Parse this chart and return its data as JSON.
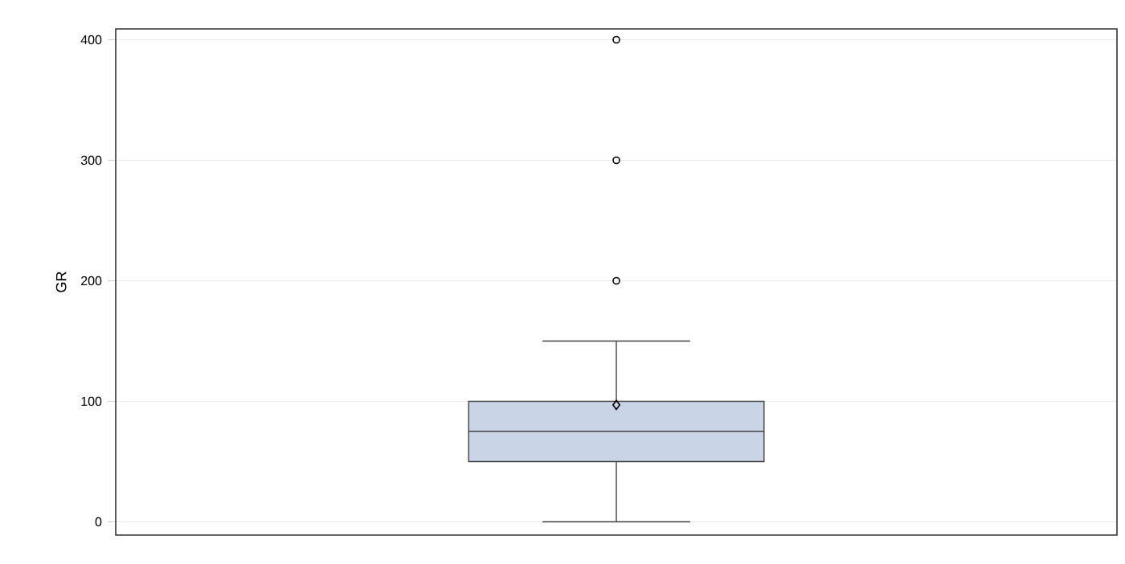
{
  "chart_data": {
    "type": "box",
    "ylabel": "GR",
    "categories": [
      null
    ],
    "boxes": [
      {
        "low": 0,
        "q1": 50,
        "median": 75,
        "q3": 100,
        "high": 150,
        "mean": 97,
        "outliers": [
          200,
          300,
          400
        ]
      }
    ],
    "color": "#c9d4e6",
    "ylim": [
      -11,
      409
    ],
    "yticks": [
      0,
      100,
      200,
      300,
      400
    ],
    "grid": "y",
    "tick_labels": "y"
  }
}
